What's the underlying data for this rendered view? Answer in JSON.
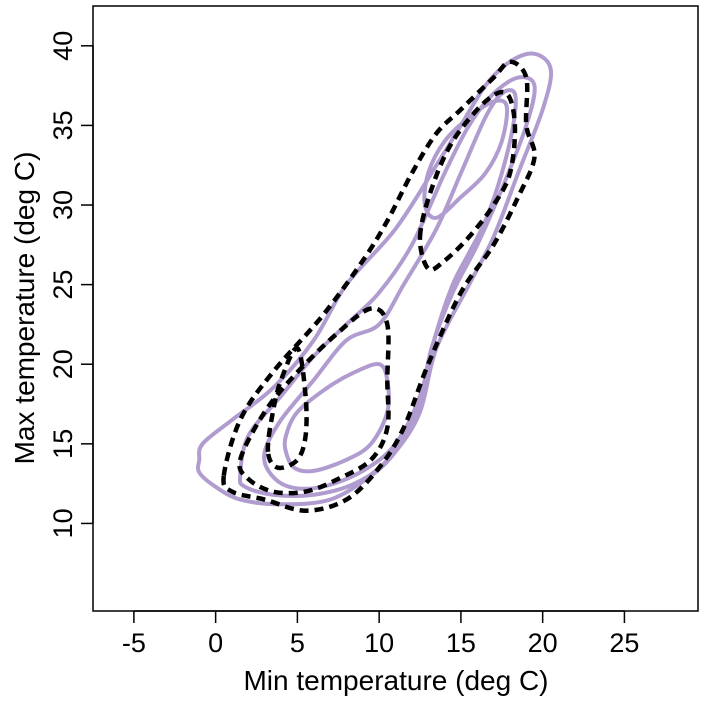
{
  "chart_data": {
    "type": "contour",
    "title": "",
    "xlabel": "Min temperature (deg C)",
    "ylabel": "Max temperature (deg C)",
    "xlim": [
      -7.5,
      29.5
    ],
    "ylim": [
      4.5,
      42.5
    ],
    "xticks": [
      -5,
      0,
      5,
      10,
      15,
      20,
      25
    ],
    "yticks": [
      10,
      15,
      20,
      25,
      30,
      35,
      40
    ],
    "grid": false,
    "legend": "none",
    "series": [
      {
        "style": "solid",
        "color": "#b19cd0",
        "contours": [
          [
            [
              -1,
              14
            ],
            [
              -0.8,
              15
            ],
            [
              1,
              16.5
            ],
            [
              3.5,
              18.5
            ],
            [
              6,
              21.5
            ],
            [
              8,
              25
            ],
            [
              11,
              28.5
            ],
            [
              13.5,
              32.5
            ],
            [
              15,
              35
            ],
            [
              16.5,
              37.5
            ],
            [
              18,
              39
            ],
            [
              19.5,
              39.5
            ],
            [
              20.5,
              38.5
            ],
            [
              20,
              36
            ],
            [
              18.5,
              32
            ],
            [
              17,
              28
            ],
            [
              15.5,
              25
            ],
            [
              13.5,
              21
            ],
            [
              12.5,
              17
            ],
            [
              11,
              14.5
            ],
            [
              9.5,
              13
            ],
            [
              7,
              11.5
            ],
            [
              4,
              11.2
            ],
            [
              1.5,
              11.5
            ],
            [
              0,
              12.3
            ],
            [
              -1,
              13.2
            ],
            [
              -1,
              14
            ]
          ],
          [
            [
              1.5,
              13
            ],
            [
              2,
              15.5
            ],
            [
              4,
              18
            ],
            [
              6,
              20.5
            ],
            [
              8,
              22.5
            ],
            [
              10,
              24.5
            ],
            [
              12,
              27.5
            ],
            [
              14,
              32
            ],
            [
              15.5,
              35
            ],
            [
              17,
              37
            ],
            [
              18.5,
              38
            ],
            [
              19.5,
              37.5
            ],
            [
              19,
              35
            ],
            [
              17.5,
              31
            ],
            [
              16,
              27.5
            ],
            [
              14.5,
              24.5
            ],
            [
              13.2,
              21
            ],
            [
              12.3,
              17
            ],
            [
              10.5,
              14
            ],
            [
              8.5,
              12.5
            ],
            [
              6,
              11.8
            ],
            [
              3.5,
              11.8
            ],
            [
              1.8,
              12.3
            ],
            [
              1.5,
              13
            ]
          ],
          [
            [
              3,
              14.5
            ],
            [
              4,
              16.5
            ],
            [
              6,
              19
            ],
            [
              8,
              21.5
            ],
            [
              10,
              22.5
            ],
            [
              11.5,
              25
            ],
            [
              13.5,
              28.5
            ],
            [
              15,
              32
            ],
            [
              16.5,
              35.5
            ],
            [
              17.5,
              37
            ],
            [
              18.3,
              37
            ],
            [
              18.2,
              35
            ],
            [
              17.5,
              32
            ],
            [
              16.5,
              29
            ],
            [
              15.5,
              27
            ],
            [
              14.5,
              25
            ],
            [
              13.5,
              22
            ],
            [
              12.5,
              18
            ],
            [
              11,
              15
            ],
            [
              9,
              13.3
            ],
            [
              6.5,
              12.3
            ],
            [
              4.5,
              12.3
            ],
            [
              3.3,
              13.2
            ],
            [
              3,
              14.5
            ]
          ],
          [
            [
              4.3,
              15.5
            ],
            [
              5,
              17
            ],
            [
              6.8,
              18.5
            ],
            [
              8.5,
              19.5
            ],
            [
              10,
              20
            ],
            [
              10.5,
              19
            ],
            [
              10.5,
              17
            ],
            [
              9.5,
              15
            ],
            [
              8,
              14
            ],
            [
              6,
              13.3
            ],
            [
              4.8,
              13.5
            ],
            [
              4.3,
              14.5
            ],
            [
              4.3,
              15.5
            ]
          ],
          [
            [
              12.8,
              30
            ],
            [
              13,
              32
            ],
            [
              14,
              34
            ],
            [
              15.5,
              35.5
            ],
            [
              17,
              36.5
            ],
            [
              17.8,
              36.2
            ],
            [
              17.5,
              34
            ],
            [
              16.5,
              32
            ],
            [
              15,
              30.5
            ],
            [
              13.5,
              29.2
            ],
            [
              12.8,
              30
            ]
          ]
        ]
      },
      {
        "style": "dashed",
        "color": "#000000",
        "contours": [
          [
            [
              0.5,
              13
            ],
            [
              1.5,
              16.5
            ],
            [
              3.5,
              19.5
            ],
            [
              6.5,
              23
            ],
            [
              9,
              26.5
            ],
            [
              10.5,
              29
            ],
            [
              12,
              32
            ],
            [
              13.5,
              34.5
            ],
            [
              15,
              36
            ],
            [
              17,
              38
            ],
            [
              18,
              39
            ],
            [
              19,
              38
            ],
            [
              19,
              35
            ],
            [
              19.5,
              33
            ],
            [
              18.5,
              30.5
            ],
            [
              17,
              27.5
            ],
            [
              15,
              24.5
            ],
            [
              13,
              20
            ],
            [
              11.5,
              16
            ],
            [
              10,
              13.5
            ],
            [
              8,
              11.5
            ],
            [
              5.5,
              10.8
            ],
            [
              3,
              11.5
            ],
            [
              1,
              12
            ],
            [
              0.5,
              13
            ]
          ],
          [
            [
              1.5,
              14
            ],
            [
              3,
              17
            ],
            [
              5,
              19.5
            ],
            [
              7.5,
              22
            ],
            [
              9.5,
              23.5
            ],
            [
              10.5,
              22.5
            ],
            [
              10.5,
              19
            ],
            [
              10.5,
              16
            ],
            [
              9.5,
              14
            ],
            [
              7.5,
              12.8
            ],
            [
              5.5,
              12
            ],
            [
              3.5,
              12
            ],
            [
              2,
              12.8
            ],
            [
              1.5,
              14
            ]
          ],
          [
            [
              12.5,
              28
            ],
            [
              13.2,
              31
            ],
            [
              14.5,
              34
            ],
            [
              16.5,
              36.5
            ],
            [
              17.8,
              37
            ],
            [
              18.3,
              35
            ],
            [
              18,
              32
            ],
            [
              17,
              30
            ],
            [
              15.5,
              28
            ],
            [
              14,
              26.5
            ],
            [
              13,
              26
            ],
            [
              12.5,
              28
            ]
          ],
          [
            [
              3.2,
              14.5
            ],
            [
              3.5,
              17
            ],
            [
              4,
              19
            ],
            [
              5,
              21
            ],
            [
              5.5,
              18
            ],
            [
              5.5,
              15.5
            ],
            [
              5,
              14
            ],
            [
              3.8,
              13.5
            ],
            [
              3.2,
              14.5
            ]
          ]
        ]
      }
    ]
  }
}
